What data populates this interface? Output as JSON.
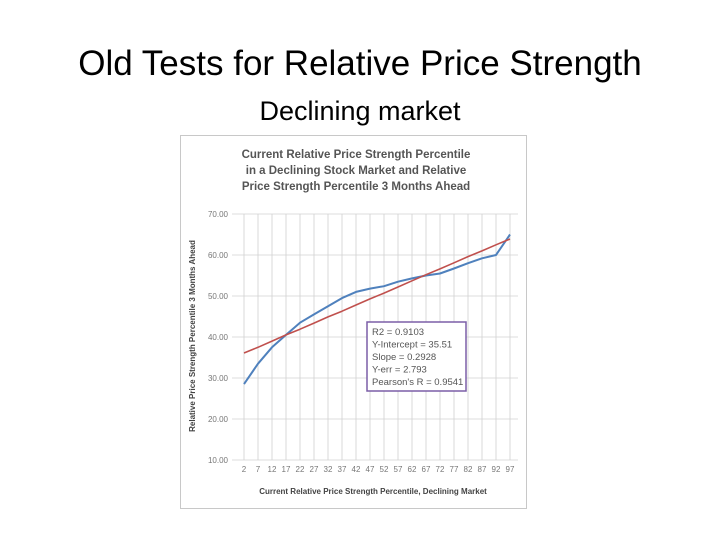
{
  "slide": {
    "title": "Old Tests for Relative Price Strength",
    "subtitle": "Declining market"
  },
  "stats_box": {
    "lines": [
      "R2 = 0.9103",
      "Y-Intercept = 35.51",
      "Slope = 0.2928",
      "Y-err = 2.793",
      "Pearson's R = 0.9541"
    ]
  },
  "colors": {
    "data_line": "#4f81bd",
    "trend_line": "#c0504d",
    "grid": "#d0d0d0",
    "stats_border": "#7b5ea7"
  },
  "chart_data": {
    "type": "line",
    "title_lines": [
      "Current Relative Price Strength Percentile",
      "in a Declining Stock Market  and Relative",
      "Price Strength Percentile 3 Months Ahead"
    ],
    "xlabel": "Current Relative Price Strength Percentile, Declining Market",
    "ylabel": "Relative Price Strength Percentile 3 Months Ahead",
    "categories": [
      "2",
      "7",
      "12",
      "17",
      "22",
      "27",
      "32",
      "37",
      "42",
      "47",
      "52",
      "57",
      "62",
      "67",
      "72",
      "77",
      "82",
      "87",
      "92",
      "97"
    ],
    "yticks": [
      "10.00",
      "20.00",
      "30.00",
      "40.00",
      "50.00",
      "60.00",
      "70.00"
    ],
    "ylim": [
      10,
      70
    ],
    "grid": true,
    "series": [
      {
        "type": "line",
        "values": [
          28.5,
          33.5,
          37.5,
          40.5,
          43.5,
          45.5,
          47.5,
          49.5,
          51,
          51.8,
          52.4,
          53.5,
          54.3,
          55,
          55.5,
          56.7,
          58,
          59.2,
          60,
          65
        ]
      },
      {
        "type": "trendline",
        "values": [
          36.1,
          37.5,
          39.0,
          40.5,
          41.9,
          43.4,
          44.9,
          46.3,
          47.8,
          49.3,
          50.7,
          52.2,
          53.7,
          55.2,
          56.6,
          58.1,
          59.6,
          61.0,
          62.5,
          63.9
        ]
      }
    ]
  }
}
